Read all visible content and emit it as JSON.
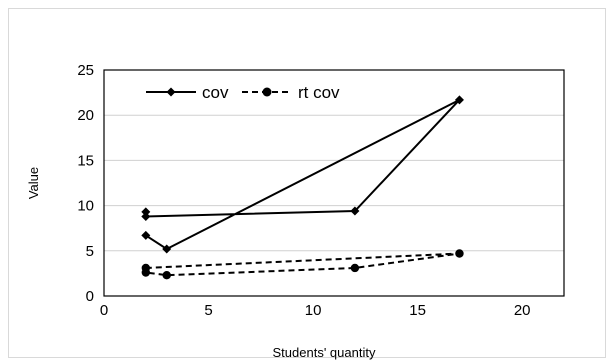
{
  "chart_data": {
    "type": "line",
    "xlabel": "Students' quantity",
    "ylabel": "Value",
    "xlim": [
      0,
      22
    ],
    "ylim": [
      0,
      25
    ],
    "xticks": [
      0,
      5,
      10,
      15,
      20
    ],
    "yticks": [
      0,
      5,
      10,
      15,
      20,
      25
    ],
    "grid": "horizontal",
    "legend_position": "top-left",
    "series": [
      {
        "name": "cov",
        "line_style": "solid",
        "marker": "diamond",
        "color": "#000000",
        "points": [
          [
            2,
            9.3
          ],
          [
            2,
            8.8
          ],
          [
            12,
            9.4
          ],
          [
            17,
            21.7
          ],
          [
            3,
            5.2
          ],
          [
            2,
            6.7
          ]
        ]
      },
      {
        "name": "rt cov",
        "line_style": "dashed",
        "marker": "circle",
        "color": "#000000",
        "points": [
          [
            2,
            3.1
          ],
          [
            17,
            4.7
          ],
          [
            12,
            3.1
          ],
          [
            3,
            2.3
          ],
          [
            2,
            2.6
          ]
        ]
      }
    ]
  }
}
